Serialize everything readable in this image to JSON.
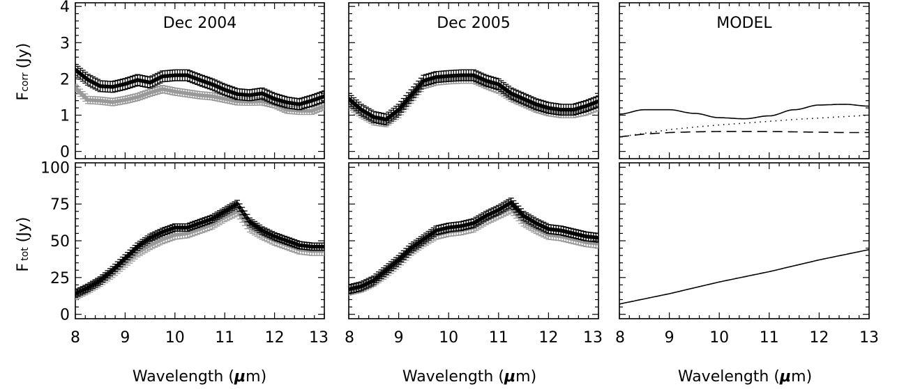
{
  "figure": {
    "ylabel_top_main": "F",
    "ylabel_top_sub": "corr",
    "ylabel_top_unit": "(Jy)",
    "ylabel_bottom_main": "F",
    "ylabel_bottom_sub": "tot",
    "ylabel_bottom_unit": "(Jy)",
    "xlabel_main": "Wavelength (",
    "xlabel_mu": "μ",
    "xlabel_tail": "m)"
  },
  "colors": {
    "dec_black": "#000000",
    "grey": "#999999"
  },
  "chart_data": [
    {
      "type": "scatter",
      "title": "Dec 2004",
      "panel": "top-left",
      "xlim": [
        8,
        13
      ],
      "ylim": [
        -0.2,
        4.1
      ],
      "yticks": [
        0,
        1,
        2,
        3,
        4
      ],
      "series": [
        {
          "style": "black-errorbar",
          "x": [
            8.0,
            8.25,
            8.5,
            8.75,
            9.0,
            9.25,
            9.5,
            9.75,
            10.0,
            10.25,
            10.5,
            10.75,
            11.0,
            11.25,
            11.5,
            11.75,
            12.0,
            12.25,
            12.5,
            12.75,
            13.0
          ],
          "y": [
            2.25,
            1.98,
            1.8,
            1.78,
            1.86,
            1.97,
            1.9,
            2.07,
            2.1,
            2.1,
            1.97,
            1.85,
            1.7,
            1.58,
            1.55,
            1.6,
            1.45,
            1.35,
            1.3,
            1.4,
            1.52
          ],
          "err": 0.15
        },
        {
          "style": "grey-errorbar",
          "x": [
            8.0,
            8.25,
            8.5,
            8.75,
            9.0,
            9.25,
            9.5,
            9.75,
            10.0,
            10.25,
            10.5,
            10.75,
            11.0,
            11.25,
            11.5,
            11.75,
            12.0,
            12.25,
            12.5,
            12.75,
            13.0
          ],
          "y": [
            1.75,
            1.42,
            1.4,
            1.36,
            1.42,
            1.5,
            1.62,
            1.72,
            1.65,
            1.6,
            1.55,
            1.52,
            1.45,
            1.38,
            1.37,
            1.38,
            1.3,
            1.15,
            1.12,
            1.12,
            1.25
          ],
          "err": 0.1
        }
      ]
    },
    {
      "type": "scatter",
      "title": "Dec 2005",
      "panel": "top-middle",
      "xlim": [
        8,
        13
      ],
      "ylim": [
        -0.2,
        4.1
      ],
      "series": [
        {
          "style": "black-errorbar",
          "x": [
            8.0,
            8.25,
            8.5,
            8.75,
            9.0,
            9.25,
            9.5,
            9.75,
            10.0,
            10.25,
            10.5,
            10.75,
            11.0,
            11.25,
            11.5,
            11.75,
            12.0,
            12.25,
            12.5,
            12.75,
            13.0
          ],
          "y": [
            1.45,
            1.15,
            0.95,
            0.88,
            1.15,
            1.55,
            1.95,
            2.05,
            2.08,
            2.1,
            2.1,
            1.95,
            1.85,
            1.6,
            1.45,
            1.3,
            1.2,
            1.15,
            1.15,
            1.25,
            1.38
          ],
          "err": 0.15
        },
        {
          "style": "grey-errorbar",
          "x": [
            8.0,
            8.25,
            8.5,
            8.75,
            9.0,
            9.25,
            9.5,
            9.75,
            10.0,
            10.25,
            10.5,
            10.75,
            11.0,
            11.25,
            11.5,
            11.75,
            12.0,
            12.25,
            12.5,
            12.75,
            13.0
          ],
          "y": [
            1.3,
            1.05,
            0.85,
            0.8,
            1.05,
            1.45,
            1.85,
            1.95,
            1.98,
            2.0,
            2.0,
            1.85,
            1.72,
            1.5,
            1.35,
            1.2,
            1.1,
            1.05,
            1.05,
            1.12,
            1.25
          ],
          "err": 0.12
        }
      ]
    },
    {
      "type": "line",
      "title": "MODEL",
      "panel": "top-right",
      "xlim": [
        8,
        13
      ],
      "ylim": [
        -0.2,
        4.1
      ],
      "series": [
        {
          "style": "solid",
          "x": [
            8.0,
            8.5,
            9.0,
            9.5,
            10.0,
            10.5,
            11.0,
            11.5,
            12.0,
            12.5,
            13.0
          ],
          "y": [
            1.03,
            1.15,
            1.15,
            1.05,
            0.93,
            0.9,
            0.98,
            1.15,
            1.28,
            1.3,
            1.25
          ]
        },
        {
          "style": "dotted",
          "x": [
            8.0,
            8.5,
            9.0,
            9.5,
            10.0,
            10.5,
            11.0,
            11.5,
            12.0,
            12.5,
            13.0
          ],
          "y": [
            0.4,
            0.5,
            0.6,
            0.67,
            0.73,
            0.78,
            0.83,
            0.88,
            0.92,
            0.96,
            1.0
          ]
        },
        {
          "style": "dashed",
          "x": [
            8.0,
            8.5,
            9.0,
            9.5,
            10.0,
            10.5,
            11.0,
            11.5,
            12.0,
            12.5,
            13.0
          ],
          "y": [
            0.4,
            0.48,
            0.52,
            0.54,
            0.55,
            0.55,
            0.55,
            0.54,
            0.53,
            0.52,
            0.52
          ]
        }
      ]
    },
    {
      "type": "scatter",
      "panel": "bottom-left",
      "xlim": [
        8,
        13
      ],
      "ylim": [
        -3,
        103
      ],
      "yticks": [
        0,
        25,
        50,
        75,
        100
      ],
      "xticks": [
        8,
        9,
        10,
        11,
        12,
        13
      ],
      "series": [
        {
          "style": "black-errorbar",
          "x": [
            8.0,
            8.25,
            8.5,
            8.75,
            9.0,
            9.25,
            9.5,
            9.75,
            10.0,
            10.25,
            10.5,
            10.75,
            11.0,
            11.25,
            11.5,
            11.75,
            12.0,
            12.25,
            12.5,
            12.75,
            13.0
          ],
          "y": [
            14,
            18,
            23,
            30,
            38,
            46,
            52,
            56,
            59,
            59,
            62,
            65,
            70,
            75,
            63,
            57,
            53,
            50,
            47,
            46,
            46
          ],
          "err": 2.5
        },
        {
          "style": "grey-errorbar",
          "x": [
            8.0,
            8.25,
            8.5,
            8.75,
            9.0,
            9.25,
            9.5,
            9.75,
            10.0,
            10.25,
            10.5,
            10.75,
            11.0,
            11.25,
            11.5,
            11.75,
            12.0,
            12.25,
            12.5,
            12.75,
            13.0
          ],
          "y": [
            13,
            17,
            22,
            28,
            35,
            42,
            47,
            51,
            54,
            55,
            58,
            61,
            66,
            70,
            59,
            54,
            50,
            47,
            44,
            43,
            43
          ],
          "err": 3
        }
      ]
    },
    {
      "type": "scatter",
      "panel": "bottom-middle",
      "xlim": [
        8,
        13
      ],
      "ylim": [
        -3,
        103
      ],
      "xticks": [
        8,
        9,
        10,
        11,
        12,
        13
      ],
      "series": [
        {
          "style": "black-errorbar",
          "x": [
            8.0,
            8.25,
            8.5,
            8.75,
            9.0,
            9.25,
            9.5,
            9.75,
            10.0,
            10.25,
            10.5,
            10.75,
            11.0,
            11.25,
            11.5,
            11.75,
            12.0,
            12.25,
            12.5,
            12.75,
            13.0
          ],
          "y": [
            17,
            19,
            23,
            30,
            37,
            45,
            51,
            57,
            59,
            60,
            62,
            67,
            71,
            76,
            67,
            62,
            58,
            57,
            55,
            53,
            52
          ],
          "err": 3
        },
        {
          "style": "grey-errorbar",
          "x": [
            8.0,
            8.25,
            8.5,
            8.75,
            9.0,
            9.25,
            9.5,
            9.75,
            10.0,
            10.25,
            10.5,
            10.75,
            11.0,
            11.25,
            11.5,
            11.75,
            12.0,
            12.25,
            12.5,
            12.75,
            13.0
          ],
          "y": [
            16,
            18,
            22,
            28,
            35,
            43,
            49,
            54,
            56,
            57,
            59,
            64,
            68,
            72,
            63,
            58,
            54,
            53,
            51,
            49,
            48
          ],
          "err": 3
        }
      ]
    },
    {
      "type": "line",
      "panel": "bottom-right",
      "xlim": [
        8,
        13
      ],
      "ylim": [
        -3,
        103
      ],
      "xticks": [
        8,
        9,
        10,
        11,
        12,
        13
      ],
      "series": [
        {
          "style": "solid",
          "x": [
            8.0,
            9.0,
            10.0,
            11.0,
            12.0,
            13.0
          ],
          "y": [
            7,
            14,
            22,
            29,
            37,
            44
          ]
        }
      ]
    }
  ]
}
